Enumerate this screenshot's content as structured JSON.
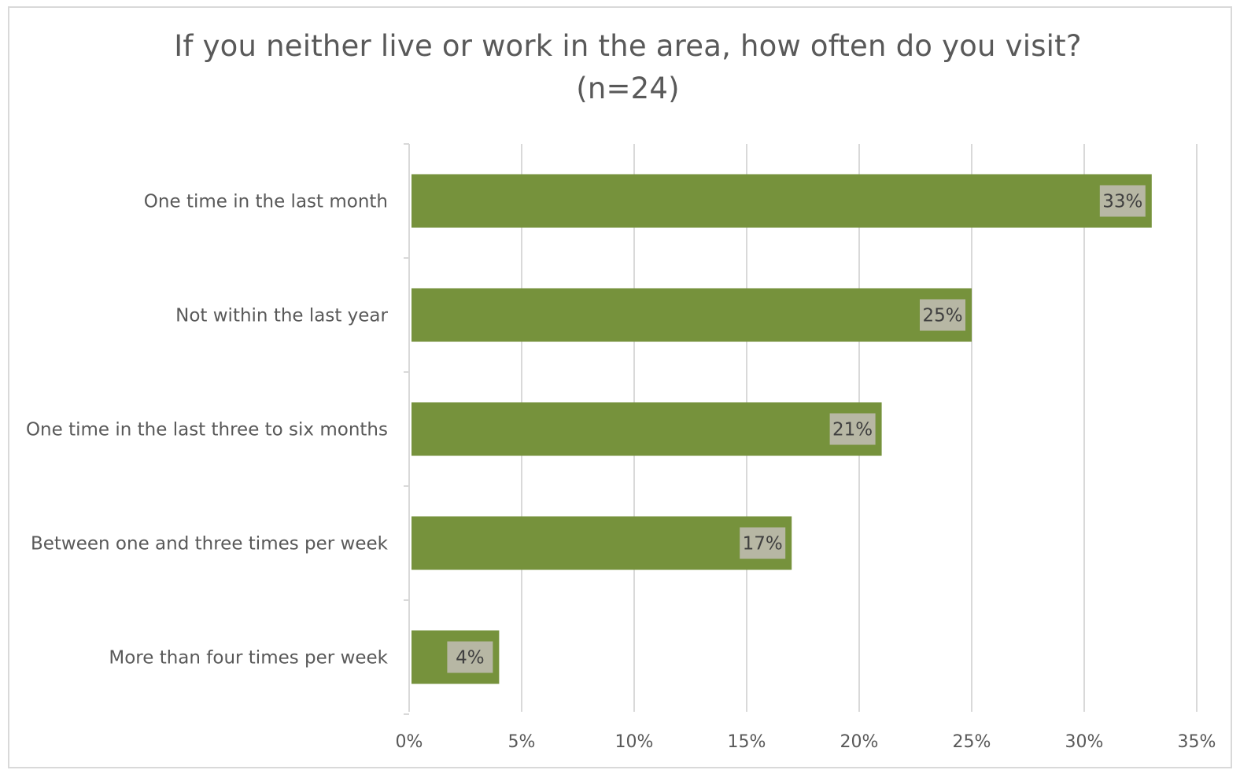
{
  "chart_data": {
    "type": "bar",
    "orientation": "horizontal",
    "title": "If you neither live or work in the area, how often do you visit?",
    "subtitle": "(n=24)",
    "categories": [
      "One time in the last month",
      "Not within the last year",
      "One time in the last three to six months",
      "Between one and three times per week",
      "More than four times per week"
    ],
    "values": [
      33,
      25,
      21,
      17,
      4
    ],
    "data_labels": [
      "33%",
      "25%",
      "21%",
      "17%",
      "4%"
    ],
    "xlim": [
      0,
      35
    ],
    "x_ticks": [
      0,
      5,
      10,
      15,
      20,
      25,
      30,
      35
    ],
    "x_tick_labels": [
      "0%",
      "5%",
      "10%",
      "15%",
      "20%",
      "25%",
      "30%",
      "35%"
    ],
    "grid": true,
    "legend": "none",
    "bar_color": "#76923c",
    "label_box_color": "#b7b7a4",
    "gridline_color": "#d9d9d9"
  }
}
